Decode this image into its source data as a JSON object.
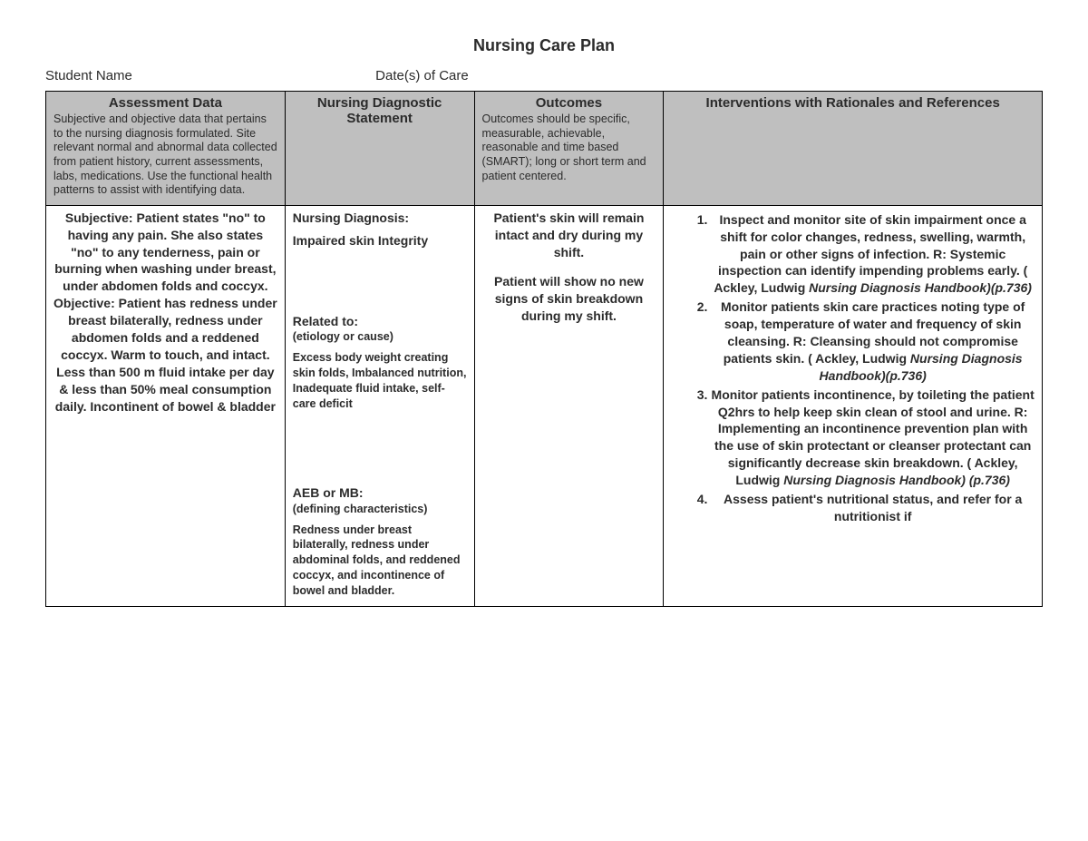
{
  "title": "Nursing Care Plan",
  "meta": {
    "student_label": "Student Name",
    "date_label": "Date(s) of Care"
  },
  "columns": {
    "assessment": {
      "title": "Assessment Data",
      "desc": "Subjective and objective data that pertains to the nursing diagnosis formulated.  Site relevant normal and abnormal data collected from patient history, current assessments, labs, medications.  Use the functional health patterns to assist with identifying data."
    },
    "diagnostic": {
      "title": "Nursing Diagnostic Statement",
      "desc": ""
    },
    "outcomes": {
      "title": "Outcomes",
      "desc": "Outcomes should be specific, measurable, achievable, reasonable and time based (SMART); long or short term and patient centered."
    },
    "interventions": {
      "title": "Interventions with Rationales and References",
      "desc": ""
    }
  },
  "body": {
    "assessment": "Subjective: Patient states \"no\" to having any pain. She also states \"no\" to any tenderness, pain or burning when washing under breast, under abdomen folds and coccyx.\nObjective: Patient has redness under breast bilaterally, redness under abdomen folds and a reddened coccyx. Warm to touch, and intact.\nLess than 500 m fluid intake per day & less than 50% meal consumption daily. Incontinent of bowel & bladder",
    "diagnosis_label": "Nursing Diagnosis:",
    "diagnosis_text": "Impaired skin Integrity",
    "related_label": "Related to:",
    "related_sub": "(etiology or cause)",
    "related_text": "Excess body weight creating skin folds, Imbalanced nutrition, Inadequate fluid intake, self-care deficit",
    "aeb_label": "AEB or MB:",
    "aeb_sub": "(defining characteristics)",
    "aeb_text": "Redness under breast bilaterally, redness under abdominal folds, and reddened coccyx, and incontinence of bowel and bladder.",
    "outcome1": "Patient's skin will remain intact and dry during my shift.",
    "outcome2": "Patient will show no new signs of skin breakdown during my shift.",
    "interventions": [
      {
        "text": "Inspect and monitor site of skin impairment once a shift for color changes, redness, swelling, warmth, pain or other signs of infection. R: Systemic inspection can identify impending problems early. ( Ackley, Ludwig ",
        "cite": "Nursing Diagnosis Handbook)(p.736)"
      },
      {
        "text": "Monitor patients skin care practices noting type of soap, temperature of water and frequency of skin cleansing. R: Cleansing should not compromise patients skin.  ( Ackley, Ludwig ",
        "cite": "Nursing Diagnosis Handbook)(p.736)"
      },
      {
        "text": "Monitor patients incontinence, by toileting the patient Q2hrs to help keep skin clean of stool and urine. R: Implementing an incontinence prevention plan with the use of skin protectant or cleanser protectant can significantly decrease skin breakdown.  ( Ackley, Ludwig ",
        "cite": "Nursing Diagnosis Handbook) (p.736)"
      },
      {
        "text": "Assess patient's nutritional status, and refer for a nutritionist if",
        "cite": ""
      }
    ]
  }
}
